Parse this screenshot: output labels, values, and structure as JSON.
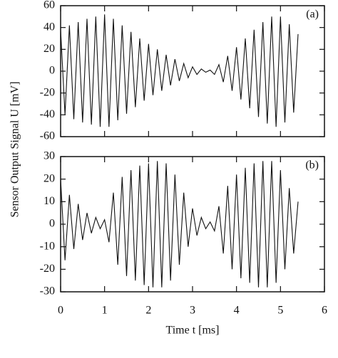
{
  "chart_data": [
    {
      "type": "line",
      "annotation": "(a)",
      "ylabel": "Sensor Output Signal U [mV]",
      "x": [
        0,
        0.1,
        0.2,
        0.3,
        0.4,
        0.5,
        0.6,
        0.7,
        0.8,
        0.9,
        1.0,
        1.1,
        1.2,
        1.3,
        1.4,
        1.5,
        1.6,
        1.7,
        1.8,
        1.9,
        2.0,
        2.1,
        2.2,
        2.3,
        2.4,
        2.5,
        2.6,
        2.7,
        2.8,
        2.9,
        3.0,
        3.1,
        3.2,
        3.3,
        3.4,
        3.5,
        3.6,
        3.7,
        3.8,
        3.9,
        4.0,
        4.1,
        4.2,
        4.3,
        4.4,
        4.5,
        4.6,
        4.7,
        4.8,
        4.9,
        5.0,
        5.1,
        5.2,
        5.3,
        5.4
      ],
      "series": [
        {
          "color": "#111111",
          "values": [
            38,
            -40,
            42,
            -44,
            45,
            -47,
            48,
            -49,
            50,
            -51,
            52,
            -51,
            48,
            -45,
            42,
            -39,
            36,
            -33,
            30,
            -27,
            25,
            -22,
            20,
            -18,
            15,
            -13,
            11,
            -9,
            7,
            -6,
            4,
            -3,
            2,
            -1,
            1,
            -3,
            6,
            -10,
            14,
            -18,
            22,
            -26,
            30,
            -34,
            38,
            -42,
            45,
            -48,
            50,
            -51,
            50,
            -47,
            43,
            -38,
            34
          ]
        }
      ],
      "xlim": [
        0,
        6
      ],
      "xticks": [
        0,
        1,
        2,
        3,
        4,
        5,
        6
      ],
      "ylim": [
        -60,
        60
      ],
      "yticks": [
        60,
        40,
        20,
        0,
        -20,
        -40,
        -60
      ]
    },
    {
      "type": "line",
      "annotation": "(b)",
      "xlabel": "Time t [ms]",
      "x": [
        0,
        0.1,
        0.2,
        0.3,
        0.4,
        0.5,
        0.6,
        0.7,
        0.8,
        0.9,
        1.0,
        1.1,
        1.2,
        1.3,
        1.4,
        1.5,
        1.6,
        1.7,
        1.8,
        1.9,
        2.0,
        2.1,
        2.2,
        2.3,
        2.4,
        2.5,
        2.6,
        2.7,
        2.8,
        2.9,
        3.0,
        3.1,
        3.2,
        3.3,
        3.4,
        3.5,
        3.6,
        3.7,
        3.8,
        3.9,
        4.0,
        4.1,
        4.2,
        4.3,
        4.4,
        4.5,
        4.6,
        4.7,
        4.8,
        4.9,
        5.0,
        5.1,
        5.2,
        5.3,
        5.4
      ],
      "series": [
        {
          "color": "#111111",
          "values": [
            20,
            -16,
            13,
            -11,
            9,
            -7,
            5,
            -4,
            3,
            -2,
            2,
            -8,
            14,
            -18,
            21,
            -23,
            24,
            -25,
            26,
            -27,
            27,
            -28,
            28,
            -28,
            27,
            -25,
            22,
            -18,
            14,
            -10,
            7,
            -5,
            3,
            -2,
            1,
            -3,
            8,
            -13,
            17,
            -20,
            22,
            -24,
            25,
            -26,
            27,
            -28,
            28,
            -28,
            28,
            -26,
            24,
            -20,
            16,
            -13,
            10
          ]
        }
      ],
      "xlim": [
        0,
        6
      ],
      "xticks": [
        0,
        1,
        2,
        3,
        4,
        5,
        6
      ],
      "ylim": [
        -30,
        30
      ],
      "yticks": [
        30,
        20,
        10,
        0,
        -10,
        -20,
        -30
      ]
    }
  ]
}
